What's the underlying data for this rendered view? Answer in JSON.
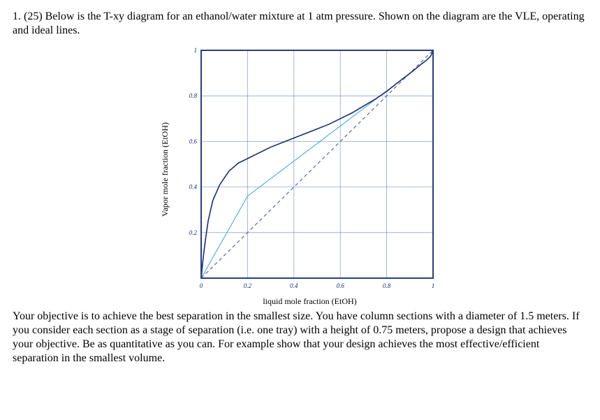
{
  "question": {
    "intro": "1. (25) Below is the T-xy diagram for an ethanol/water mixture at 1 atm pressure.  Shown on the diagram are the VLE, operating and ideal lines.",
    "body": "Your objective is to achieve the best separation in the smallest size.  You have column sections with a diameter of 1.5 meters.  If you consider each section as a stage of separation (i.e. one tray) with a height of 0.75 meters, propose a design that achieves your objective.  Be as quantitative as you can.  For example show that your design achieves the most effective/efficient separation in the smallest volume."
  },
  "chart": {
    "type": "line",
    "xlabel": "liquid mole fraction (EtOH)",
    "ylabel": "Vapor mole fraction (EtOH)",
    "xlim": [
      0,
      1
    ],
    "ylim": [
      0,
      1
    ],
    "grid_step": 0.2,
    "tick_labels_x": [
      "0",
      "0.2",
      "0.4",
      "0.6",
      "0.8",
      "1"
    ],
    "tick_labels_y": [
      "0.2",
      "0.4",
      "0.6",
      "0.8",
      "1"
    ],
    "tick_fontsize": 9,
    "label_fontsize": 12,
    "background_color": "#ffffff",
    "grid_color": "#3a5da8",
    "grid_width": 0.8,
    "frame_color": "#2a3f7a",
    "frame_width": 2,
    "vle": {
      "color": "#1a2e6e",
      "width": 1.6,
      "points": [
        [
          0.0,
          0.0
        ],
        [
          0.01,
          0.1
        ],
        [
          0.02,
          0.18
        ],
        [
          0.03,
          0.25
        ],
        [
          0.05,
          0.34
        ],
        [
          0.08,
          0.41
        ],
        [
          0.12,
          0.47
        ],
        [
          0.16,
          0.505
        ],
        [
          0.2,
          0.525
        ],
        [
          0.25,
          0.55
        ],
        [
          0.3,
          0.575
        ],
        [
          0.35,
          0.595
        ],
        [
          0.4,
          0.615
        ],
        [
          0.45,
          0.635
        ],
        [
          0.5,
          0.655
        ],
        [
          0.55,
          0.675
        ],
        [
          0.6,
          0.7
        ],
        [
          0.65,
          0.725
        ],
        [
          0.7,
          0.755
        ],
        [
          0.75,
          0.785
        ],
        [
          0.8,
          0.82
        ],
        [
          0.85,
          0.86
        ],
        [
          0.894,
          0.894
        ],
        [
          0.92,
          0.915
        ],
        [
          0.95,
          0.94
        ],
        [
          0.97,
          0.955
        ],
        [
          0.99,
          0.975
        ],
        [
          1.0,
          1.0
        ]
      ]
    },
    "ideal": {
      "color": "#5a6aa0",
      "width": 1.2,
      "dash": "5,4",
      "points": [
        [
          0,
          0
        ],
        [
          1,
          1
        ]
      ]
    },
    "operating": {
      "color": "#3aa0d8",
      "width": 1.0,
      "segments": [
        [
          [
            0.0,
            0.0
          ],
          [
            0.2,
            0.36
          ]
        ],
        [
          [
            0.2,
            0.36
          ],
          [
            0.894,
            0.894
          ]
        ]
      ]
    }
  }
}
